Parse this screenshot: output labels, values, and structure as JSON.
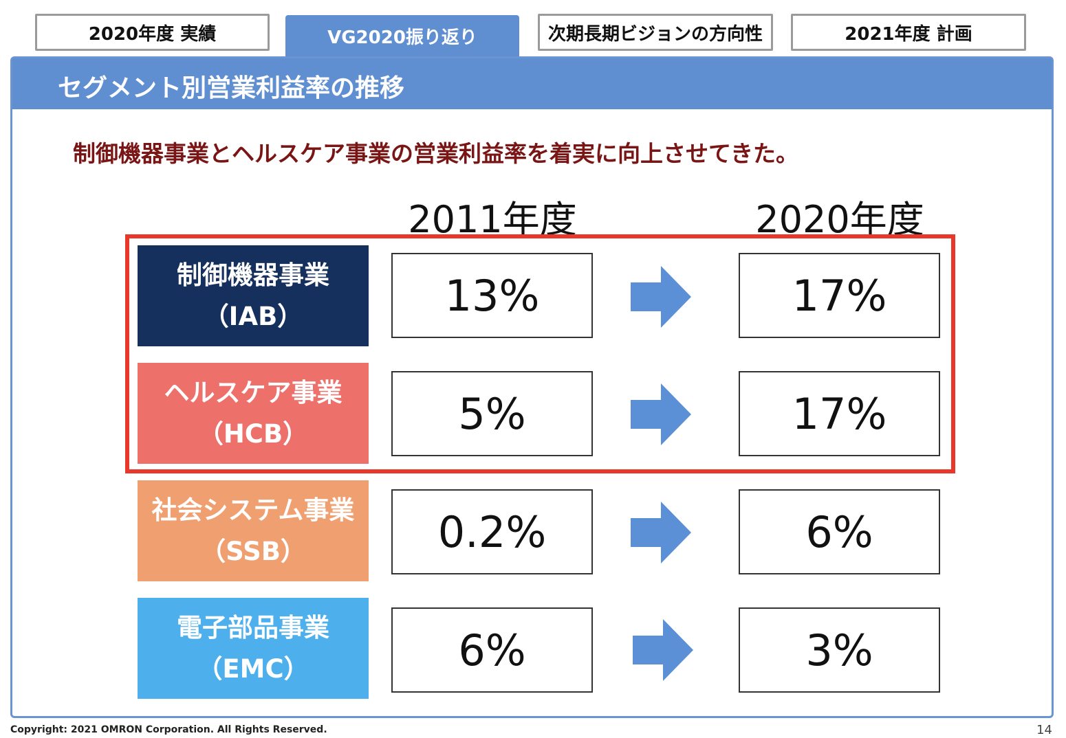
{
  "tabs": [
    {
      "label": "2020年度 実績",
      "active": false
    },
    {
      "label": "VG2020振り返り",
      "active": true
    },
    {
      "label": "次期長期ビジョンの方向性",
      "active": false
    },
    {
      "label": "2021年度 計画",
      "active": false
    }
  ],
  "panel": {
    "title": "セグメント別営業利益率の推移",
    "subtitle": "制御機器事業とヘルスケア事業の営業利益率を着実に向上させてきた。"
  },
  "years": {
    "from": "2011年度",
    "to": "2020年度"
  },
  "colors": {
    "accent": "#5f8fd0",
    "highlight": "#e8382c",
    "subtitle": "#7a1515",
    "arrow": "#5b8fd6"
  },
  "segments": [
    {
      "name": "制御機器事業",
      "code": "（IAB）",
      "from": "13%",
      "to": "17%",
      "color": "#15305c",
      "highlighted": true
    },
    {
      "name": "ヘルスケア事業",
      "code": "（HCB）",
      "from": "5%",
      "to": "17%",
      "color": "#ed706a",
      "highlighted": true
    },
    {
      "name": "社会システム事業",
      "code": "（SSB）",
      "from": "0.2%",
      "to": "6%",
      "color": "#f0a070",
      "highlighted": false
    },
    {
      "name": "電子部品事業",
      "code": "（EMC）",
      "from": "6%",
      "to": "3%",
      "color": "#4db0ec",
      "highlighted": false
    }
  ],
  "footer": {
    "copyright": "Copyright: 2021 OMRON Corporation. All Rights Reserved.",
    "page": "14"
  }
}
